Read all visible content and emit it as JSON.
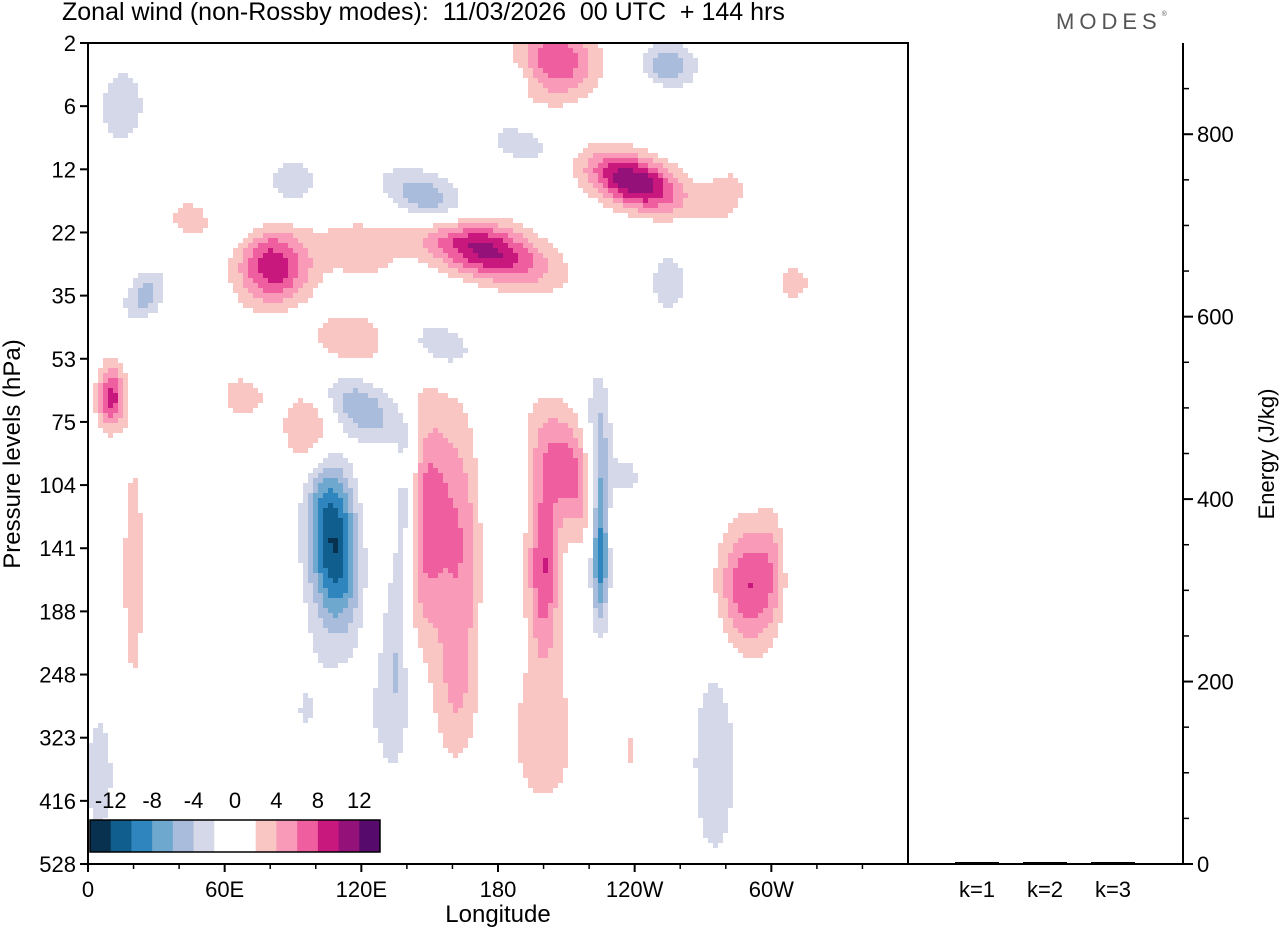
{
  "header": {
    "title": "Zonal wind (non-Rossby modes):  11/03/2026  00 UTC  + 144 hrs",
    "brand": "MODES"
  },
  "chart_data": [
    {
      "type": "heatmap",
      "xlabel": "Longitude",
      "ylabel": "Pressure levels (hPa)",
      "x_ticks": [
        "0",
        "60E",
        "120E",
        "180",
        "120W",
        "60W"
      ],
      "y_ticks": [
        "2",
        "6",
        "12",
        "22",
        "35",
        "53",
        "75",
        "104",
        "141",
        "188",
        "248",
        "323",
        "416",
        "528"
      ],
      "colorbar": {
        "labels": [
          "-12",
          "-8",
          "-4",
          "0",
          "4",
          "8",
          "12"
        ],
        "colors": [
          "#08304f",
          "#0f5e8e",
          "#2f86bf",
          "#6fa8cf",
          "#a9bcdb",
          "#d5d8e8",
          "#ffffff",
          "#ffffff",
          "#f9c6c3",
          "#f89ab8",
          "#ef5fa0",
          "#c8187e",
          "#94117a",
          "#550a6c"
        ]
      },
      "blobs": [
        {
          "lon": 100,
          "lev": 6.1,
          "a": 13,
          "b": 0.7,
          "rot": 0,
          "sign": 1,
          "amp": 6
        },
        {
          "lon": 82,
          "lev": 3.6,
          "a": 15,
          "b": 0.6,
          "rot": 55,
          "sign": 1,
          "amp": 9
        },
        {
          "lon": 78,
          "lev": 3.2,
          "a": 7,
          "b": 0.45,
          "rot": 55,
          "sign": 1,
          "amp": 2
        },
        {
          "lon": 10,
          "lev": 5.6,
          "a": 6,
          "b": 0.5,
          "rot": 0,
          "sign": 1,
          "amp": 9
        },
        {
          "lon": 148,
          "lev": 7.5,
          "a": 14,
          "b": 1.9,
          "rot": 0,
          "sign": 1,
          "amp": 8
        },
        {
          "lon": 165,
          "lev": 8.2,
          "a": 8,
          "b": 2.2,
          "rot": 0,
          "sign": 1,
          "amp": 4
        },
        {
          "lon": 200,
          "lev": 8.3,
          "a": 7,
          "b": 1.4,
          "rot": 0,
          "sign": 1,
          "amp": 8
        },
        {
          "lon": 212,
          "lev": 6.8,
          "a": 14,
          "b": 1.1,
          "rot": -20,
          "sign": 1,
          "amp": 7
        },
        {
          "lon": 170,
          "lev": 3.2,
          "a": 32,
          "b": 0.45,
          "rot": 20,
          "sign": 1,
          "amp": 12
        },
        {
          "lon": 240,
          "lev": 2.2,
          "a": 22,
          "b": 0.4,
          "rot": 20,
          "sign": 1,
          "amp": 12
        },
        {
          "lon": 290,
          "lev": 8.6,
          "a": 13,
          "b": 1.0,
          "rot": 0,
          "sign": 1,
          "amp": 8
        },
        {
          "lon": 300,
          "lev": 8.1,
          "a": 5,
          "b": 1.0,
          "rot": 0,
          "sign": 1,
          "amp": 2
        },
        {
          "lon": 20,
          "lev": 8.4,
          "a": 6,
          "b": 2.4,
          "rot": 0,
          "sign": 1,
          "amp": 3
        },
        {
          "lon": 200,
          "lev": 11.0,
          "a": 18,
          "b": 1.4,
          "rot": 0,
          "sign": 1,
          "amp": 3
        },
        {
          "lon": 238,
          "lev": 11.2,
          "a": 12,
          "b": 1.5,
          "rot": 0,
          "sign": 1,
          "amp": 2
        },
        {
          "lon": 160,
          "lev": 10.3,
          "a": 10,
          "b": 1.2,
          "rot": 0,
          "sign": 1,
          "amp": 3
        },
        {
          "lon": 205,
          "lev": 0.3,
          "a": 18,
          "b": 0.6,
          "rot": 0,
          "sign": 1,
          "amp": 8
        },
        {
          "lon": 250,
          "lev": 0.8,
          "a": 14,
          "b": 0.35,
          "rot": 0,
          "sign": 1,
          "amp": 2
        },
        {
          "lon": 115,
          "lev": 4.7,
          "a": 17,
          "b": 0.45,
          "rot": 0,
          "sign": 1,
          "amp": 4
        },
        {
          "lon": 118,
          "lev": 3.3,
          "a": 20,
          "b": 0.5,
          "rot": 25,
          "sign": 1,
          "amp": 3
        },
        {
          "lon": 275,
          "lev": 5.0,
          "a": 9,
          "b": 0.5,
          "rot": 0,
          "sign": 1,
          "amp": 2
        },
        {
          "lon": 45,
          "lev": 2.8,
          "a": 12,
          "b": 0.35,
          "rot": 30,
          "sign": 1,
          "amp": 3
        },
        {
          "lon": 280,
          "lev": 2.4,
          "a": 10,
          "b": 0.5,
          "rot": 30,
          "sign": 1,
          "amp": 3
        },
        {
          "lon": 310,
          "lev": 3.8,
          "a": 8,
          "b": 0.35,
          "rot": 0,
          "sign": 1,
          "amp": 3
        },
        {
          "lon": 68,
          "lev": 5.6,
          "a": 12,
          "b": 0.4,
          "rot": 30,
          "sign": 1,
          "amp": 3
        },
        {
          "lon": 105,
          "lev": 7.6,
          "a": 10,
          "b": 1.4,
          "rot": 0,
          "sign": -1,
          "amp": 9
        },
        {
          "lon": 112,
          "lev": 8.3,
          "a": 9,
          "b": 1.1,
          "rot": 0,
          "sign": -1,
          "amp": 6
        },
        {
          "lon": 140,
          "lev": 7.3,
          "a": 6,
          "b": 1.3,
          "rot": 0,
          "sign": -1,
          "amp": 7
        },
        {
          "lon": 135,
          "lev": 9.2,
          "a": 6,
          "b": 1.7,
          "rot": 0,
          "sign": -1,
          "amp": 4
        },
        {
          "lon": 120,
          "lev": 5.8,
          "a": 22,
          "b": 0.45,
          "rot": 32,
          "sign": -1,
          "amp": 6
        },
        {
          "lon": 155,
          "lev": 4.8,
          "a": 18,
          "b": 0.4,
          "rot": 25,
          "sign": -1,
          "amp": 4
        },
        {
          "lon": 150,
          "lev": 2.6,
          "a": 22,
          "b": 0.45,
          "rot": 28,
          "sign": -1,
          "amp": 8
        },
        {
          "lon": 190,
          "lev": 1.6,
          "a": 18,
          "b": 0.35,
          "rot": 20,
          "sign": -1,
          "amp": 3
        },
        {
          "lon": 225,
          "lev": 8.0,
          "a": 4,
          "b": 1.2,
          "rot": 0,
          "sign": -1,
          "amp": 10
        },
        {
          "lon": 224,
          "lev": 6.4,
          "a": 6,
          "b": 1.2,
          "rot": 0,
          "sign": -1,
          "amp": 5
        },
        {
          "lon": 130,
          "lev": 10.6,
          "a": 16,
          "b": 1.3,
          "rot": 0,
          "sign": -1,
          "amp": 2
        },
        {
          "lon": 95,
          "lev": 10.6,
          "a": 14,
          "b": 1.2,
          "rot": 0,
          "sign": -1,
          "amp": 2
        },
        {
          "lon": 5,
          "lev": 11.6,
          "a": 8,
          "b": 1.3,
          "rot": 0,
          "sign": -1,
          "amp": 3
        },
        {
          "lon": 275,
          "lev": 11.4,
          "a": 10,
          "b": 1.6,
          "rot": 0,
          "sign": -1,
          "amp": 4
        },
        {
          "lon": 255,
          "lev": 0.4,
          "a": 12,
          "b": 0.4,
          "rot": 0,
          "sign": -1,
          "amp": 6
        },
        {
          "lon": 15,
          "lev": 1.0,
          "a": 10,
          "b": 0.6,
          "rot": 0,
          "sign": -1,
          "amp": 4
        },
        {
          "lon": 25,
          "lev": 4.0,
          "a": 8,
          "b": 0.45,
          "rot": 30,
          "sign": -1,
          "amp": 5
        },
        {
          "lon": 90,
          "lev": 2.2,
          "a": 14,
          "b": 0.45,
          "rot": 0,
          "sign": -1,
          "amp": 3
        },
        {
          "lon": 255,
          "lev": 3.8,
          "a": 8,
          "b": 0.45,
          "rot": 0,
          "sign": -1,
          "amp": 4
        },
        {
          "lon": 235,
          "lev": 6.9,
          "a": 10,
          "b": 0.5,
          "rot": 0,
          "sign": -1,
          "amp": 3
        },
        {
          "lon": 190,
          "lev": 0.5,
          "a": 12,
          "b": 0.3,
          "rot": 0,
          "sign": -1,
          "amp": 2
        }
      ]
    },
    {
      "type": "bar",
      "xlabel": "",
      "ylabel": "Energy (J/kg)",
      "categories": [
        "k=1",
        "k=2",
        "k=3"
      ],
      "values": [
        1,
        1,
        1
      ],
      "ylim": [
        0,
        900
      ],
      "y_ticks": [
        0,
        200,
        400,
        600,
        800
      ]
    }
  ]
}
